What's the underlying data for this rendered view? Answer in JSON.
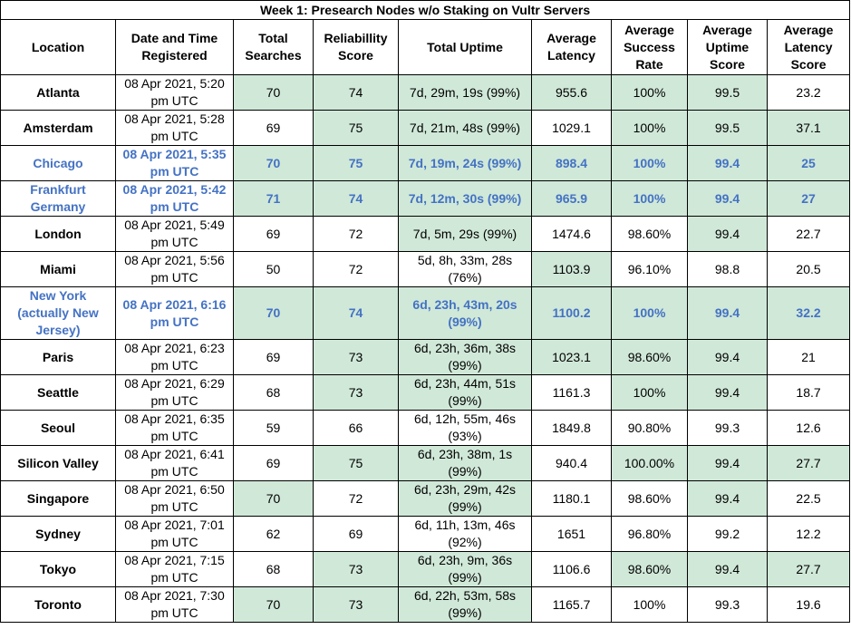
{
  "title": "Week 1: Presearch Nodes w/o Staking on Vultr Servers",
  "headers": [
    "Location",
    "Date and Time Registered",
    "Total Searches",
    "Reliabillity Score",
    "Total Uptime",
    "Average Latency",
    "Average Success Rate",
    "Average Uptime Score",
    "Average Latency Score"
  ],
  "colors": {
    "highlight_fill": "#d0e8d8",
    "highlight_text": "#4472c4"
  },
  "rows": [
    {
      "location": "Atlanta",
      "registered": "08 Apr 2021, 5:20 pm UTC",
      "searches": "70",
      "reliability": "74",
      "uptime": "7d, 29m, 19s (99%)",
      "latency": "955.6",
      "success": "100%",
      "uptime_score": "99.5",
      "latency_score": "23.2",
      "hl": false,
      "green": [
        2,
        3,
        4,
        5,
        6,
        7
      ]
    },
    {
      "location": "Amsterdam",
      "registered": "08 Apr 2021, 5:28 pm UTC",
      "searches": "69",
      "reliability": "75",
      "uptime": "7d, 21m, 48s (99%)",
      "latency": "1029.1",
      "success": "100%",
      "uptime_score": "99.5",
      "latency_score": "37.1",
      "hl": false,
      "green": [
        3,
        4,
        6,
        7,
        8
      ]
    },
    {
      "location": "Chicago",
      "registered": "08 Apr 2021, 5:35 pm UTC",
      "searches": "70",
      "reliability": "75",
      "uptime": "7d, 19m, 24s (99%)",
      "latency": "898.4",
      "success": "100%",
      "uptime_score": "99.4",
      "latency_score": "25",
      "hl": true,
      "green": [
        2,
        3,
        4,
        5,
        6,
        7,
        8
      ]
    },
    {
      "location": "Frankfurt Germany",
      "registered": "08 Apr 2021, 5:42 pm UTC",
      "searches": "71",
      "reliability": "74",
      "uptime": "7d, 12m, 30s (99%)",
      "latency": "965.9",
      "success": "100%",
      "uptime_score": "99.4",
      "latency_score": "27",
      "hl": true,
      "green": [
        2,
        3,
        4,
        5,
        6,
        7,
        8
      ]
    },
    {
      "location": "London",
      "registered": "08 Apr 2021, 5:49 pm UTC",
      "searches": "69",
      "reliability": "72",
      "uptime": "7d, 5m, 29s (99%)",
      "latency": "1474.6",
      "success": "98.60%",
      "uptime_score": "99.4",
      "latency_score": "22.7",
      "hl": false,
      "green": [
        4,
        7
      ]
    },
    {
      "location": "Miami",
      "registered": "08 Apr 2021, 5:56 pm UTC",
      "searches": "50",
      "reliability": "72",
      "uptime": "5d, 8h, 33m, 28s (76%)",
      "latency": "1103.9",
      "success": "96.10%",
      "uptime_score": "98.8",
      "latency_score": "20.5",
      "hl": false,
      "green": [
        5
      ]
    },
    {
      "location": "New York (actually New Jersey)",
      "registered": "08 Apr 2021, 6:16 pm UTC",
      "searches": "70",
      "reliability": "74",
      "uptime": "6d, 23h, 43m, 20s (99%)",
      "latency": "1100.2",
      "success": "100%",
      "uptime_score": "99.4",
      "latency_score": "32.2",
      "hl": true,
      "green": [
        2,
        3,
        4,
        5,
        6,
        7,
        8
      ]
    },
    {
      "location": "Paris",
      "registered": "08 Apr 2021, 6:23 pm UTC",
      "searches": "69",
      "reliability": "73",
      "uptime": "6d, 23h, 36m, 38s (99%)",
      "latency": "1023.1",
      "success": "98.60%",
      "uptime_score": "99.4",
      "latency_score": "21",
      "hl": false,
      "green": [
        3,
        4,
        5,
        6,
        7
      ]
    },
    {
      "location": "Seattle",
      "registered": "08 Apr 2021, 6:29 pm UTC",
      "searches": "68",
      "reliability": "73",
      "uptime": "6d, 23h, 44m, 51s (99%)",
      "latency": "1161.3",
      "success": "100%",
      "uptime_score": "99.4",
      "latency_score": "18.7",
      "hl": false,
      "green": [
        3,
        4,
        6,
        7
      ]
    },
    {
      "location": "Seoul",
      "registered": "08 Apr 2021, 6:35 pm UTC",
      "searches": "59",
      "reliability": "66",
      "uptime": "6d, 12h, 55m, 46s (93%)",
      "latency": "1849.8",
      "success": "90.80%",
      "uptime_score": "99.3",
      "latency_score": "12.6",
      "hl": false,
      "green": []
    },
    {
      "location": "Silicon Valley",
      "registered": "08 Apr 2021, 6:41 pm UTC",
      "searches": "69",
      "reliability": "75",
      "uptime": "6d, 23h, 38m, 1s (99%)",
      "latency": "940.4",
      "success": "100.00%",
      "uptime_score": "99.4",
      "latency_score": "27.7",
      "hl": false,
      "green": [
        3,
        4,
        6,
        7,
        8
      ]
    },
    {
      "location": "Singapore",
      "registered": "08 Apr 2021, 6:50 pm UTC",
      "searches": "70",
      "reliability": "72",
      "uptime": "6d, 23h, 29m, 42s (99%)",
      "latency": "1180.1",
      "success": "98.60%",
      "uptime_score": "99.4",
      "latency_score": "22.5",
      "hl": false,
      "green": [
        2,
        4,
        7
      ]
    },
    {
      "location": "Sydney",
      "registered": "08 Apr 2021, 7:01 pm UTC",
      "searches": "62",
      "reliability": "69",
      "uptime": "6d, 11h, 13m, 46s (92%)",
      "latency": "1651",
      "success": "96.80%",
      "uptime_score": "99.2",
      "latency_score": "12.2",
      "hl": false,
      "green": []
    },
    {
      "location": "Tokyo",
      "registered": "08 Apr 2021, 7:15 pm UTC",
      "searches": "68",
      "reliability": "73",
      "uptime": "6d, 23h, 9m, 36s (99%)",
      "latency": "1106.6",
      "success": "98.60%",
      "uptime_score": "99.4",
      "latency_score": "27.7",
      "hl": false,
      "green": [
        3,
        4,
        6,
        7,
        8
      ]
    },
    {
      "location": "Toronto",
      "registered": "08 Apr 2021, 7:30 pm UTC",
      "searches": "70",
      "reliability": "73",
      "uptime": "6d, 22h, 53m, 58s (99%)",
      "latency": "1165.7",
      "success": "100%",
      "uptime_score": "99.3",
      "latency_score": "19.6",
      "hl": false,
      "green": [
        2,
        3,
        4
      ]
    }
  ]
}
